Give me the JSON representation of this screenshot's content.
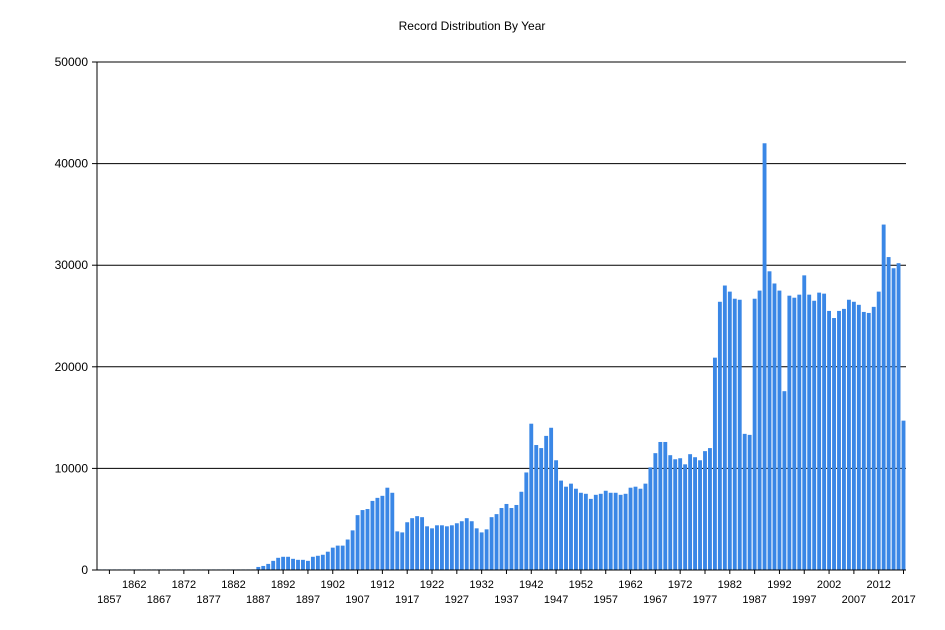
{
  "chart_data": {
    "type": "bar",
    "title": "Record Distribution By Year",
    "xlabel": "",
    "ylabel": "",
    "ylim": [
      0,
      50000
    ],
    "yticks": [
      "0",
      "10000",
      "20000",
      "30000",
      "40000",
      "50000"
    ],
    "x_start": 1855,
    "xticks_upper": [
      "1862",
      "1872",
      "1882",
      "1892",
      "1902",
      "1912",
      "1922",
      "1932",
      "1942",
      "1952",
      "1962",
      "1972",
      "1982",
      "1992",
      "2002",
      "2012"
    ],
    "xticks_lower": [
      "1857",
      "1867",
      "1877",
      "1887",
      "1897",
      "1907",
      "1917",
      "1927",
      "1937",
      "1947",
      "1957",
      "1967",
      "1977",
      "1987",
      "1997",
      "2007",
      "2017"
    ],
    "grid": true,
    "bar_color": "#3a87e6",
    "values": [
      20,
      20,
      20,
      20,
      20,
      20,
      20,
      20,
      20,
      20,
      20,
      20,
      20,
      20,
      20,
      20,
      20,
      20,
      20,
      20,
      20,
      20,
      20,
      20,
      20,
      20,
      20,
      20,
      20,
      20,
      20,
      20,
      300,
      400,
      600,
      900,
      1200,
      1300,
      1300,
      1100,
      1000,
      1000,
      900,
      1300,
      1400,
      1500,
      1800,
      2200,
      2400,
      2400,
      3000,
      3900,
      5400,
      5900,
      6000,
      6800,
      7100,
      7300,
      8100,
      7600,
      3800,
      3700,
      4700,
      5100,
      5300,
      5200,
      4300,
      4100,
      4400,
      4400,
      4300,
      4400,
      4600,
      4800,
      5100,
      4800,
      4100,
      3700,
      4000,
      5200,
      5500,
      6100,
      6500,
      6100,
      6400,
      7700,
      9600,
      14400,
      12300,
      12000,
      13200,
      14000,
      10800,
      8800,
      8200,
      8500,
      8000,
      7600,
      7500,
      7000,
      7400,
      7500,
      7800,
      7600,
      7600,
      7400,
      7500,
      8100,
      8200,
      8000,
      8500,
      10100,
      11500,
      12600,
      12600,
      11300,
      10900,
      11000,
      10400,
      11400,
      11100,
      10800,
      11700,
      12000,
      20900,
      26400,
      28000,
      27400,
      26700,
      26600,
      13400,
      13300,
      26700,
      27500,
      42000,
      29400,
      28200,
      27500,
      17600,
      27000,
      26800,
      27100,
      29000,
      27100,
      26500,
      27300,
      27200,
      25500,
      24800,
      25500,
      25700,
      26600,
      26400,
      26100,
      25400,
      25300,
      25900,
      27400,
      34000,
      30800,
      29700,
      30200,
      14700
    ]
  }
}
